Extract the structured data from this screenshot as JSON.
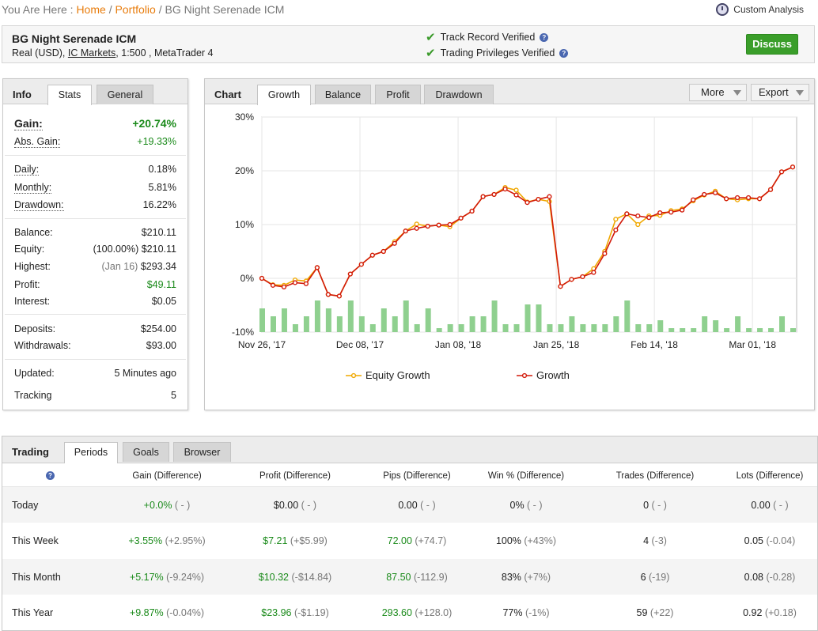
{
  "breadcrumb": {
    "prefix": "You Are Here :",
    "home": "Home",
    "portfolio": "Portfolio",
    "current": "BG Night Serenade ICM",
    "sep": "/"
  },
  "custom_analysis": "Custom Analysis",
  "account": {
    "name": "BG Night Serenade ICM",
    "type": "Real (USD),",
    "broker": "IC Markets",
    "leverage_platform": ", 1:500 , MetaTrader 4"
  },
  "verification": {
    "track": "Track Record Verified",
    "privileges": "Trading Privileges Verified",
    "help": "?"
  },
  "discuss_label": "Discuss",
  "info": {
    "title": "Info",
    "tabs": [
      "Stats",
      "General"
    ],
    "gain_label": "Gain:",
    "gain_value": "+20.74%",
    "abs_gain_label": "Abs. Gain:",
    "abs_gain_value": "+19.33%",
    "daily_label": "Daily:",
    "daily_value": "0.18%",
    "monthly_label": "Monthly:",
    "monthly_value": "5.81%",
    "drawdown_label": "Drawdown:",
    "drawdown_value": "16.22%",
    "balance_label": "Balance:",
    "balance_value": "$210.11",
    "equity_label": "Equity:",
    "equity_pct": "(100.00%)",
    "equity_value": "$210.11",
    "highest_label": "Highest:",
    "highest_date": "(Jan 16)",
    "highest_value": "$293.34",
    "profit_label": "Profit:",
    "profit_value": "$49.11",
    "interest_label": "Interest:",
    "interest_value": "$0.05",
    "deposits_label": "Deposits:",
    "deposits_value": "$254.00",
    "withdrawals_label": "Withdrawals:",
    "withdrawals_value": "$93.00",
    "updated_label": "Updated:",
    "updated_value": "5 Minutes ago",
    "tracking_label": "Tracking",
    "tracking_value": "5"
  },
  "chart_panel": {
    "title": "Chart",
    "tabs": [
      "Growth",
      "Balance",
      "Profit",
      "Drawdown"
    ],
    "more": "More",
    "export": "Export"
  },
  "chart_data": {
    "type": "line",
    "x_ticks": [
      "Nov 26, '17",
      "Dec 08, '17",
      "Jan 08, '18",
      "Jan 25, '18",
      "Feb 14, '18",
      "Mar 01, '18"
    ],
    "y_ticks": [
      "30%",
      "20%",
      "10%",
      "0%",
      "-10%"
    ],
    "ylim": [
      -10,
      30
    ],
    "legend": [
      "Equity Growth",
      "Growth"
    ],
    "colors": {
      "equity": "#f0a800",
      "growth": "#d21a0a",
      "bars": "#8fd08f"
    },
    "series": [
      {
        "name": "Equity Growth",
        "values": [
          0,
          -1.2,
          -1.3,
          -0.3,
          -0.5,
          2,
          -3,
          -3.3,
          0.8,
          2.6,
          4.3,
          5,
          6.8,
          8.8,
          10.1,
          9.7,
          9.9,
          9.6,
          11.2,
          12.5,
          15.2,
          15.6,
          16.9,
          16.4,
          14.2,
          14.7,
          14.3,
          -1.5,
          -0.2,
          0.3,
          1.8,
          5,
          11,
          12,
          10,
          11.6,
          11.7,
          12.6,
          12.9,
          14.4,
          15.5,
          16.2,
          14.8,
          14.6,
          14.8,
          14.8,
          16.5,
          19.8,
          20.7
        ]
      },
      {
        "name": "Growth",
        "values": [
          0,
          -1.3,
          -1.6,
          -0.8,
          -1,
          2,
          -3,
          -3.3,
          0.8,
          2.6,
          4.3,
          5,
          6.5,
          8.8,
          9.3,
          9.7,
          9.9,
          10,
          11.2,
          12.5,
          15.2,
          15.6,
          16.6,
          15.5,
          14.1,
          14.7,
          15.2,
          -1.5,
          -0.2,
          0.3,
          1.1,
          4.6,
          9,
          12,
          11.6,
          11.3,
          12.2,
          12.3,
          12.7,
          14.6,
          15.6,
          15.9,
          14.8,
          15,
          15,
          14.8,
          16.5,
          19.8,
          20.7
        ]
      }
    ],
    "bars": [
      6,
      4,
      6,
      2,
      4,
      8,
      6,
      4,
      8,
      4,
      2,
      6,
      4,
      8,
      2,
      6,
      1,
      2,
      2,
      4,
      4,
      8,
      2,
      2,
      7,
      7,
      2,
      2,
      4,
      2,
      2,
      2,
      4,
      8,
      2,
      2,
      3,
      1,
      1,
      1,
      4,
      3,
      1,
      4,
      1,
      1,
      1,
      4,
      1
    ]
  },
  "trading": {
    "title": "Trading",
    "tabs": [
      "Periods",
      "Goals",
      "Browser"
    ],
    "headers": [
      "",
      "Gain (Difference)",
      "Profit (Difference)",
      "Pips (Difference)",
      "Win % (Difference)",
      "Trades (Difference)",
      "Lots (Difference)"
    ],
    "rows": [
      {
        "period": "Today",
        "gain": "+0.0%",
        "gain_diff": "( - )",
        "profit": "$0.00",
        "profit_diff": "( - )",
        "pips": "0.00",
        "pips_diff": "( - )",
        "win": "0%",
        "win_diff": "( - )",
        "trades": "0",
        "trades_diff": "( - )",
        "lots": "0.00",
        "lots_diff": "( - )"
      },
      {
        "period": "This Week",
        "gain": "+3.55%",
        "gain_diff": "(+2.95%)",
        "profit": "$7.21",
        "profit_diff": "(+$5.99)",
        "pips": "72.00",
        "pips_diff": "(+74.7)",
        "win": "100%",
        "win_diff": "(+43%)",
        "trades": "4",
        "trades_diff": "(-3)",
        "lots": "0.05",
        "lots_diff": "(-0.04)"
      },
      {
        "period": "This Month",
        "gain": "+5.17%",
        "gain_diff": "(-9.24%)",
        "profit": "$10.32",
        "profit_diff": "(-$14.84)",
        "pips": "87.50",
        "pips_diff": "(-112.9)",
        "win": "83%",
        "win_diff": "(+7%)",
        "trades": "6",
        "trades_diff": "(-19)",
        "lots": "0.08",
        "lots_diff": "(-0.28)"
      },
      {
        "period": "This Year",
        "gain": "+9.87%",
        "gain_diff": "(-0.04%)",
        "profit": "$23.96",
        "profit_diff": "(-$1.19)",
        "pips": "293.60",
        "pips_diff": "(+128.0)",
        "win": "77%",
        "win_diff": "(-1%)",
        "trades": "59",
        "trades_diff": "(+22)",
        "lots": "0.92",
        "lots_diff": "(+0.18)"
      }
    ]
  }
}
